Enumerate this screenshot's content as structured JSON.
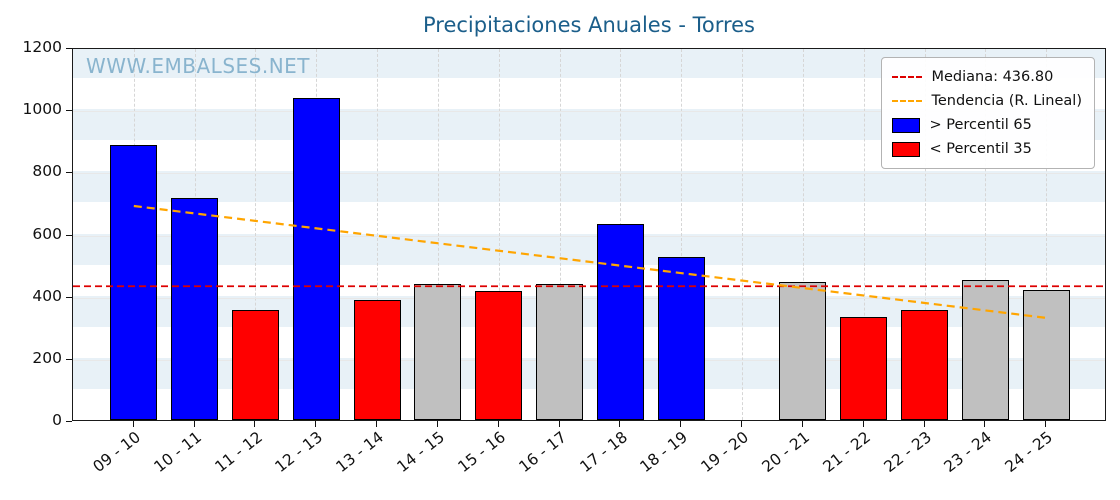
{
  "chart_data": {
    "type": "bar",
    "title": "Precipitaciones Anuales - Torres",
    "watermark": "WWW.EMBALSES.NET",
    "xlabel": "",
    "ylabel": "",
    "categories": [
      "09 - 10",
      "10 - 11",
      "11 - 12",
      "12 - 13",
      "13 - 14",
      "14 - 15",
      "15 - 16",
      "16 - 17",
      "17 - 18",
      "18 - 19",
      "19 - 20",
      "20 - 21",
      "21 - 22",
      "22 - 23",
      "23 - 24",
      "24 - 25"
    ],
    "values": [
      885,
      715,
      355,
      1035,
      385,
      437,
      415,
      437,
      632,
      525,
      null,
      443,
      330,
      355,
      452,
      418
    ],
    "bar_colors": [
      "blue",
      "blue",
      "red",
      "blue",
      "red",
      "gray",
      "red",
      "gray",
      "blue",
      "blue",
      null,
      "gray",
      "red",
      "red",
      "gray",
      "gray"
    ],
    "ylim": [
      0,
      1200
    ],
    "yticks": [
      0,
      200,
      400,
      600,
      800,
      1000,
      1200
    ],
    "band_unit": 100,
    "median": 436.8,
    "trend": {
      "start": 695,
      "end": 335
    },
    "grid": "on",
    "legend_position": "top-right",
    "legend": [
      {
        "kind": "line",
        "color": "#dd0000",
        "label": "Mediana: 436.80"
      },
      {
        "kind": "line",
        "color": "#ffa500",
        "label": "Tendencia (R. Lineal)"
      },
      {
        "kind": "patch",
        "color": "#0000ff",
        "label": "> Percentil 65"
      },
      {
        "kind": "patch",
        "color": "#ff0000",
        "label": "< Percentil 35"
      }
    ],
    "colors": {
      "blue": "#0000ff",
      "red": "#ff0000",
      "gray": "#c0c0c0",
      "median": "#dd0000",
      "trend": "#ffa500",
      "band": "#e8f1f7",
      "title": "#1b5e8a",
      "watermark": "#79aac7"
    }
  }
}
